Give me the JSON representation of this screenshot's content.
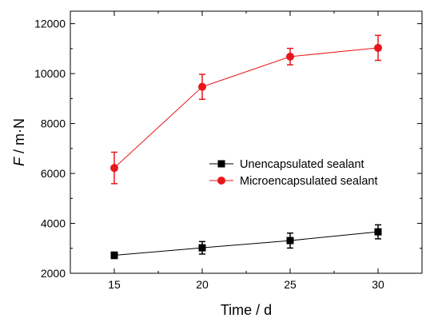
{
  "chart_data": {
    "type": "line",
    "xlabel": "Time / d",
    "ylabel_symbol": "F",
    "ylabel_unit": " / m·N",
    "x": [
      15,
      20,
      25,
      30
    ],
    "xlim": [
      12.5,
      32.5
    ],
    "ylim": [
      2000,
      12500
    ],
    "xticks": [
      15,
      20,
      25,
      30
    ],
    "yticks": [
      2000,
      4000,
      6000,
      8000,
      10000,
      12000
    ],
    "legend_position": "center-right",
    "grid": false,
    "series": [
      {
        "name": "Unencapsulated sealant",
        "color": "#000000",
        "marker": "square",
        "values": [
          2720,
          3020,
          3310,
          3660
        ],
        "errors": [
          130,
          250,
          300,
          280
        ]
      },
      {
        "name": "Microencapsulated sealant",
        "color": "#e8171a",
        "marker": "circle",
        "values": [
          6220,
          9470,
          10680,
          11030
        ],
        "errors": [
          630,
          500,
          330,
          500
        ]
      }
    ]
  }
}
